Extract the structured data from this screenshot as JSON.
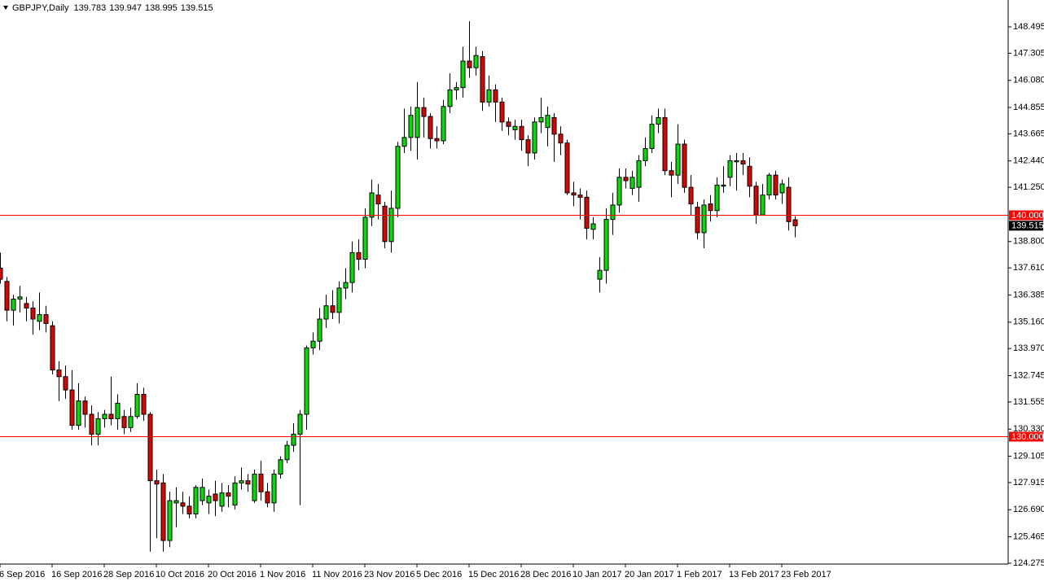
{
  "chart_data": {
    "type": "candlestick",
    "title": "GBPJPY,Daily",
    "categories": [
      "6 Sep 2016",
      null,
      null,
      null,
      null,
      null,
      null,
      null,
      "16 Sep 2016",
      null,
      null,
      null,
      null,
      null,
      null,
      null,
      "28 Sep 2016",
      null,
      null,
      null,
      null,
      null,
      null,
      null,
      "10 Oct 2016",
      null,
      null,
      null,
      null,
      null,
      null,
      null,
      "20 Oct 2016",
      null,
      null,
      null,
      null,
      null,
      null,
      null,
      "1 Nov 2016",
      null,
      null,
      null,
      null,
      null,
      null,
      null,
      "11 Nov 2016",
      null,
      null,
      null,
      null,
      null,
      null,
      null,
      "23 Nov 2016",
      null,
      null,
      null,
      null,
      null,
      null,
      null,
      "5 Dec 2016",
      null,
      null,
      null,
      null,
      null,
      null,
      null,
      "15 Dec 2016",
      null,
      null,
      null,
      null,
      null,
      null,
      null,
      "28 Dec 2016",
      null,
      null,
      null,
      null,
      null,
      null,
      null,
      "10 Jan 2017",
      null,
      null,
      null,
      null,
      null,
      null,
      null,
      "20 Jan 2017",
      null,
      null,
      null,
      null,
      null,
      null,
      null,
      "1 Feb 2017",
      null,
      null,
      null,
      null,
      null,
      null,
      null,
      "13 Feb 2017",
      null,
      null,
      null,
      null,
      null,
      null,
      null,
      "23 Feb 2017",
      null,
      null
    ],
    "open": [
      137.6,
      137.0,
      135.7,
      136.2,
      136.0,
      135.8,
      135.2,
      135.5,
      135.0,
      133.0,
      132.7,
      132.1,
      130.5,
      131.6,
      131.0,
      130.1,
      130.8,
      131.0,
      130.8,
      130.9,
      130.4,
      130.9,
      131.9,
      131.0,
      128.0,
      127.9,
      125.3,
      127.0,
      127.0,
      126.85,
      126.5,
      127.1,
      127.0,
      127.4,
      126.85,
      127.45,
      126.9,
      127.9,
      128.0,
      127.1,
      128.3,
      127.5,
      127.0,
      128.3,
      128.95,
      129.6,
      130.1,
      131.0,
      134.0,
      134.3,
      135.3,
      135.9,
      135.6,
      136.7,
      136.95,
      138.3,
      138.0,
      139.9,
      140.9,
      140.4,
      138.8,
      140.3,
      143.1,
      143.5,
      143.5,
      144.85,
      144.45,
      143.45,
      143.35,
      144.9,
      145.65,
      145.75,
      146.95,
      146.65,
      147.15,
      145.1,
      145.65,
      145.1,
      144.2,
      143.85,
      144.0,
      143.4,
      142.8,
      144.2,
      143.95,
      144.4,
      143.65,
      143.25,
      141.0,
      140.9,
      140.8,
      139.35,
      137.1,
      137.5,
      139.8,
      140.45,
      141.7,
      141.2,
      141.25,
      142.45,
      143.0,
      144.1,
      144.4,
      142.0,
      141.8,
      143.2,
      141.25,
      140.35,
      139.2,
      140.5,
      140.2,
      141.3,
      141.7,
      142.4,
      142.45,
      142.2,
      141.3,
      140.0,
      140.9,
      141.8,
      141.0,
      141.25,
      139.783
    ],
    "high": [
      138.3,
      137.2,
      136.4,
      136.8,
      136.3,
      136.1,
      136.5,
      135.9,
      135.2,
      133.4,
      133.2,
      133.0,
      132.4,
      131.8,
      131.4,
      131.1,
      131.2,
      132.7,
      131.9,
      131.2,
      131.3,
      132.4,
      132.2,
      131.1,
      128.5,
      128.3,
      127.5,
      127.7,
      127.5,
      127.3,
      127.8,
      128.1,
      127.6,
      128.0,
      127.9,
      127.8,
      128.2,
      128.6,
      128.3,
      128.5,
      128.9,
      127.9,
      128.5,
      129.1,
      129.8,
      130.6,
      131.2,
      134.1,
      134.7,
      135.8,
      136.4,
      136.6,
      137.0,
      137.6,
      138.8,
      138.9,
      140.3,
      141.6,
      141.4,
      140.6,
      141.1,
      143.3,
      144.8,
      144.9,
      146.0,
      145.3,
      144.6,
      144.0,
      145.2,
      146.4,
      146.0,
      147.6,
      148.75,
      147.6,
      147.4,
      146.3,
      145.9,
      145.3,
      144.4,
      144.3,
      144.3,
      143.6,
      144.4,
      145.3,
      144.9,
      144.6,
      144.0,
      143.4,
      141.5,
      141.2,
      141.1,
      139.9,
      138.1,
      140.3,
      141.0,
      142.1,
      142.1,
      142.0,
      142.7,
      143.5,
      144.5,
      144.8,
      144.8,
      142.4,
      144.1,
      143.4,
      141.8,
      140.6,
      140.7,
      140.9,
      141.7,
      142.2,
      142.7,
      142.8,
      142.8,
      142.6,
      141.5,
      141.4,
      141.9,
      142.0,
      141.6,
      141.7,
      139.947
    ],
    "low": [
      136.9,
      135.2,
      135.0,
      135.6,
      135.2,
      134.6,
      134.8,
      134.7,
      132.8,
      131.6,
      131.7,
      130.3,
      130.3,
      130.4,
      129.6,
      129.6,
      130.4,
      130.5,
      130.3,
      130.1,
      130.2,
      130.8,
      130.7,
      124.8,
      125.4,
      124.8,
      125.0,
      125.9,
      126.5,
      126.3,
      126.3,
      126.9,
      126.5,
      126.4,
      126.6,
      126.8,
      126.7,
      127.6,
      127.5,
      127.0,
      127.1,
      126.8,
      126.6,
      128.1,
      128.8,
      129.3,
      126.9,
      130.3,
      133.7,
      133.9,
      134.9,
      135.3,
      135.1,
      136.2,
      136.5,
      137.5,
      137.6,
      139.5,
      139.8,
      138.5,
      138.3,
      139.9,
      142.8,
      142.9,
      142.5,
      143.5,
      143.0,
      143.0,
      143.2,
      144.6,
      145.2,
      145.3,
      146.2,
      146.3,
      144.7,
      144.9,
      144.2,
      143.8,
      143.6,
      143.4,
      142.9,
      142.2,
      142.5,
      143.7,
      143.1,
      142.4,
      142.7,
      140.9,
      140.4,
      139.8,
      138.9,
      138.9,
      136.5,
      136.9,
      139.1,
      140.1,
      141.2,
      140.9,
      140.6,
      142.2,
      142.8,
      143.7,
      141.8,
      140.8,
      141.4,
      141.0,
      140.0,
      138.9,
      138.5,
      139.7,
      139.9,
      141.0,
      141.3,
      141.1,
      141.8,
      140.8,
      139.6,
      140.0,
      140.7,
      140.7,
      140.5,
      139.3,
      138.995
    ],
    "close": [
      137.1,
      135.7,
      136.2,
      136.3,
      135.8,
      135.3,
      135.5,
      135.1,
      133.0,
      132.7,
      132.1,
      130.5,
      131.6,
      131.0,
      130.1,
      130.8,
      131.0,
      130.8,
      131.5,
      130.4,
      130.9,
      131.9,
      131.0,
      128.0,
      127.85,
      125.3,
      127.1,
      127.1,
      126.85,
      126.5,
      127.7,
      127.7,
      127.3,
      127.1,
      127.45,
      127.3,
      127.9,
      128.0,
      127.85,
      128.3,
      127.5,
      127.0,
      128.3,
      128.95,
      129.6,
      130.1,
      131.0,
      134.0,
      134.3,
      135.3,
      135.9,
      135.6,
      136.7,
      136.95,
      138.3,
      138.0,
      139.9,
      141.0,
      140.5,
      138.8,
      140.3,
      143.1,
      143.5,
      144.5,
      144.85,
      144.45,
      143.45,
      143.35,
      144.9,
      145.65,
      145.75,
      146.95,
      146.65,
      147.2,
      145.1,
      145.65,
      145.1,
      144.2,
      144.0,
      144.0,
      143.4,
      142.8,
      144.2,
      144.4,
      144.5,
      143.65,
      143.25,
      141.0,
      140.9,
      140.8,
      139.4,
      139.6,
      137.5,
      139.8,
      140.45,
      141.7,
      141.55,
      141.7,
      142.45,
      143.0,
      144.1,
      144.4,
      142.0,
      141.8,
      143.2,
      141.25,
      140.5,
      139.2,
      140.45,
      140.2,
      141.35,
      141.35,
      142.45,
      142.45,
      142.3,
      141.3,
      140.0,
      140.9,
      141.8,
      140.9,
      141.4,
      139.7,
      139.515
    ],
    "up_color": "#00e000",
    "down_color": "#e00000",
    "wick_color": "#000000",
    "ylim": [
      124.238,
      149.708
    ],
    "yticks": [
      148.495,
      147.305,
      {
        "value": 146.08,
        "label": "146.080"
      },
      144.855,
      143.665,
      {
        "value": 142.44,
        "label": "142.440"
      },
      {
        "value": 141.25,
        "label": "141.250"
      },
      {
        "value": 138.8,
        "label": "138.800"
      },
      {
        "value": 137.61,
        "label": "137.610"
      },
      136.385,
      {
        "value": 135.16,
        "label": "135.160"
      },
      {
        "value": 133.97,
        "label": "133.970"
      },
      132.745,
      131.555,
      {
        "value": 130.33,
        "label": "130.330"
      },
      129.105,
      127.915,
      {
        "value": 126.69,
        "label": "126.690"
      },
      125.465,
      124.275
    ],
    "hlines": [
      {
        "value": 140,
        "label": "140.000"
      },
      {
        "value": 130,
        "label": "130.000"
      }
    ],
    "hline_color": "#ff0000"
  }
}
